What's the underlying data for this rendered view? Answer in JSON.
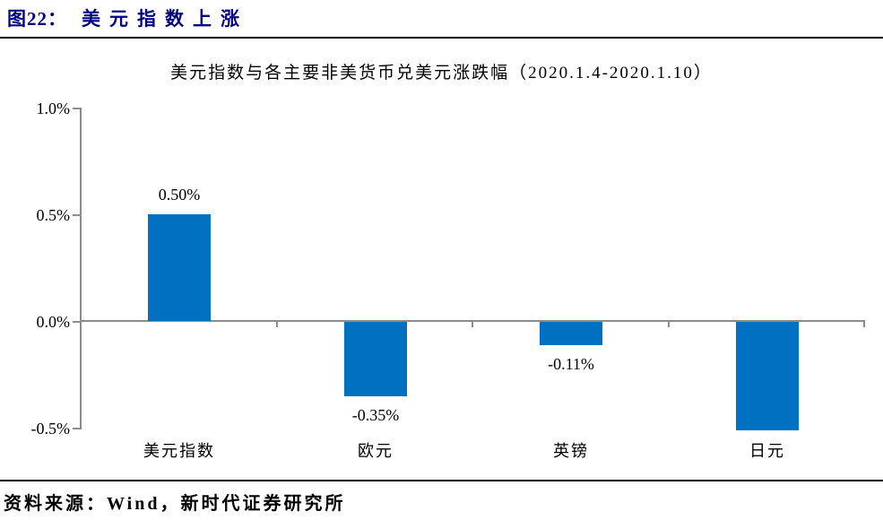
{
  "page": {
    "figure_label": "图22：",
    "figure_title": "美元指数上涨",
    "source_text": "资料来源：Wind，新时代证券研究所"
  },
  "colors": {
    "header_navy": "#000080",
    "bar_blue": "#0070C0",
    "axis_gray": "#8C8C8C",
    "rule_black": "#000000"
  },
  "chart_data": {
    "type": "bar",
    "title": "美元指数与各主要非美货币兑美元涨跌幅（2020.1.4-2020.1.10）",
    "categories": [
      "美元指数",
      "欧元",
      "英镑",
      "日元"
    ],
    "values": [
      0.5,
      -0.35,
      -0.11,
      -0.51
    ],
    "data_labels": [
      "0.50%",
      "-0.35%",
      "-0.11%",
      null
    ],
    "unit": "%",
    "ylabel": "",
    "xlabel": "",
    "ylim": [
      -0.5,
      1.0
    ],
    "yticks": [
      {
        "value": 1.0,
        "label": "1.0%"
      },
      {
        "value": 0.5,
        "label": "0.5%"
      },
      {
        "value": 0.0,
        "label": "0.0%"
      },
      {
        "value": -0.5,
        "label": "-0.5%"
      }
    ],
    "grid": false,
    "legend": null
  }
}
